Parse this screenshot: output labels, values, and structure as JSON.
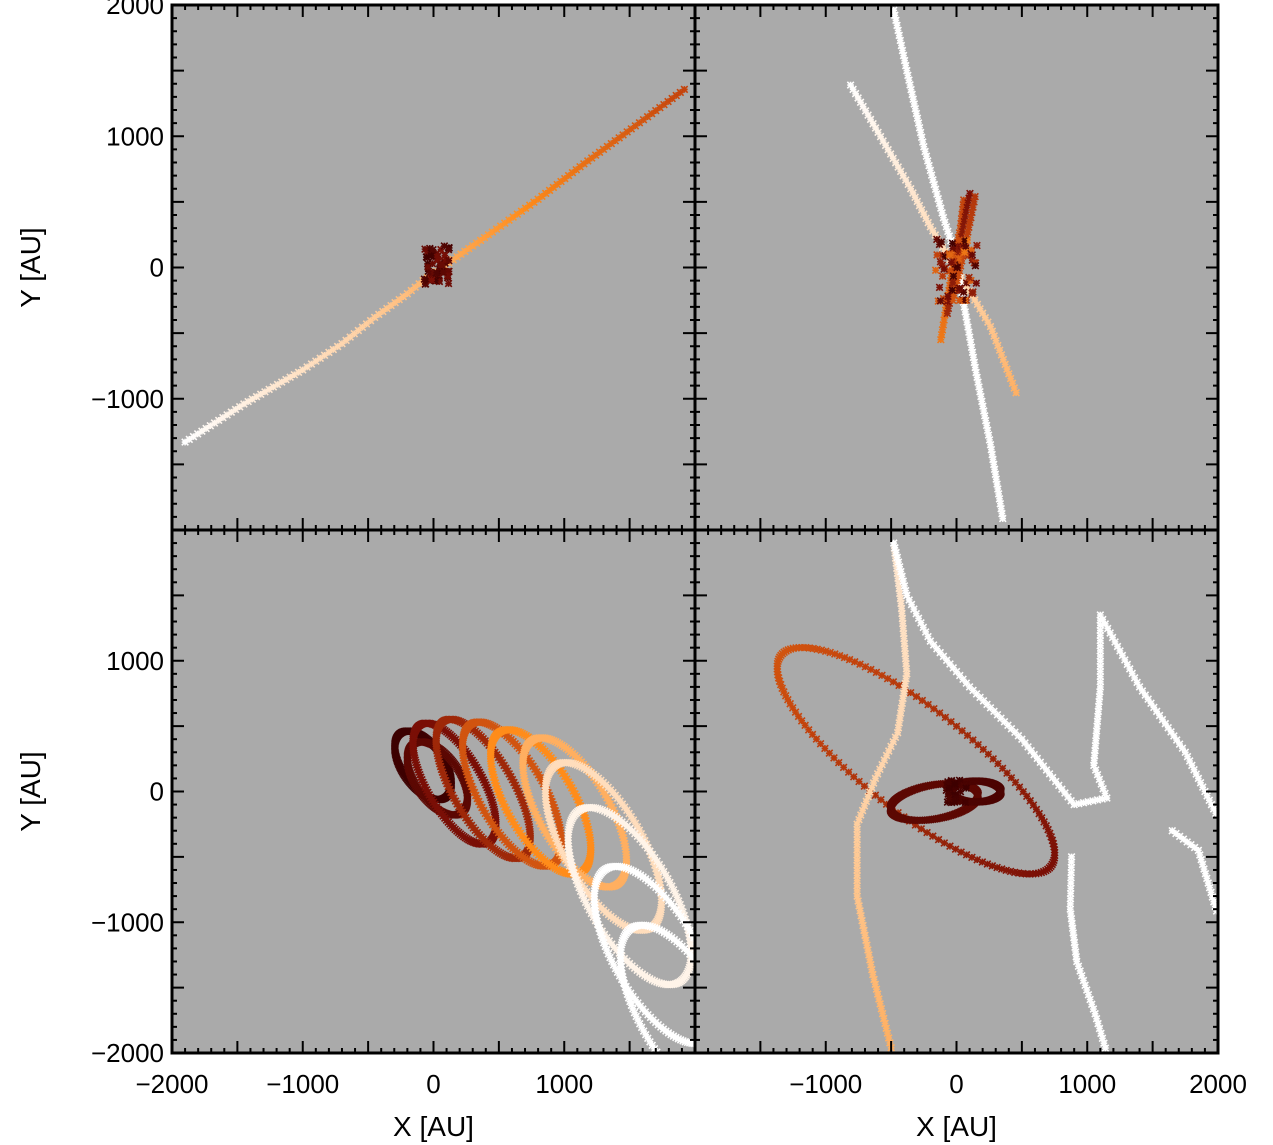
{
  "figure": {
    "background": "#ffffff",
    "panel_color": "#aaaaaa",
    "axis_color": "#000000",
    "colormap": [
      "#3d0000",
      "#7a0f06",
      "#c2410c",
      "#ff8c1a",
      "#ffd2a6",
      "#ffffff"
    ]
  },
  "chart_data": [
    {
      "type": "scatter",
      "panel": "top-left",
      "xlim": [
        -2000,
        2000
      ],
      "ylim": [
        -2000,
        2000
      ],
      "xlabel": "",
      "ylabel": "Y [AU]",
      "xticks": [],
      "yticks": [
        {
          "value": 2000,
          "label": "2000"
        },
        {
          "value": 1000,
          "label": "1000"
        },
        {
          "value": 0,
          "label": "0"
        },
        {
          "value": -1000,
          "label": "−1000"
        }
      ],
      "series": [
        {
          "kind": "line",
          "points": [
            [
              -1900,
              -1330
            ],
            [
              -1450,
              -1040
            ],
            [
              -1000,
              -780
            ],
            [
              -700,
              -580
            ],
            [
              -450,
              -380
            ],
            [
              -200,
              -200
            ],
            [
              -80,
              -100
            ],
            [
              150,
              60
            ],
            [
              450,
              270
            ],
            [
              800,
              520
            ],
            [
              1150,
              790
            ],
            [
              1450,
              1010
            ],
            [
              1950,
              1380
            ]
          ],
          "color_range": [
            1.0,
            0.4
          ]
        },
        {
          "kind": "blob",
          "center": [
            30,
            20
          ],
          "extent": [
            100,
            150
          ],
          "n": 60,
          "color_range": [
            0.0,
            0.2
          ]
        }
      ]
    },
    {
      "type": "scatter",
      "panel": "top-right",
      "xlim": [
        -2000,
        2000
      ],
      "ylim": [
        -2000,
        2000
      ],
      "xlabel": "",
      "ylabel": "",
      "xticks": [],
      "yticks": [],
      "series": [
        {
          "kind": "line",
          "points": [
            [
              -810,
              1390
            ],
            [
              -600,
              1030
            ],
            [
              -350,
              600
            ],
            [
              -200,
              310
            ],
            [
              -50,
              60
            ],
            [
              100,
              -180
            ],
            [
              260,
              -450
            ],
            [
              470,
              -990
            ]
          ],
          "color_range": [
            1.0,
            0.7
          ]
        },
        {
          "kind": "line",
          "points": [
            [
              -480,
              1960
            ],
            [
              -380,
              1500
            ],
            [
              -250,
              920
            ],
            [
              -100,
              380
            ],
            [
              -10,
              100
            ],
            [
              60,
              -300
            ],
            [
              150,
              -800
            ],
            [
              260,
              -1350
            ],
            [
              360,
              -1950
            ]
          ],
          "color_range": [
            1.0,
            1.0
          ]
        },
        {
          "kind": "line",
          "points": [
            [
              -120,
              -550
            ],
            [
              -70,
              -250
            ],
            [
              -20,
              50
            ],
            [
              30,
              300
            ],
            [
              60,
              550
            ]
          ],
          "color_range": [
            0.55,
            0.4
          ]
        },
        {
          "kind": "line",
          "points": [
            [
              -70,
              -350
            ],
            [
              0,
              0
            ],
            [
              60,
              350
            ],
            [
              110,
              600
            ]
          ],
          "color_range": [
            0.3,
            0.2
          ]
        },
        {
          "kind": "line",
          "points": [
            [
              -30,
              -250
            ],
            [
              40,
              50
            ],
            [
              110,
              380
            ],
            [
              150,
              580
            ]
          ],
          "color_range": [
            0.45,
            0.35
          ]
        },
        {
          "kind": "blob",
          "center": [
            0,
            -20
          ],
          "extent": [
            160,
            260
          ],
          "n": 70,
          "color_range": [
            0.0,
            0.55
          ]
        }
      ]
    },
    {
      "type": "scatter",
      "panel": "bottom-left",
      "xlim": [
        -2000,
        2000
      ],
      "ylim": [
        -2000,
        2000
      ],
      "xlabel": "X [AU]",
      "ylabel": "Y [AU]",
      "xticks": [
        {
          "value": -2000,
          "label": "−2000"
        },
        {
          "value": -1000,
          "label": "−1000"
        },
        {
          "value": 0,
          "label": "0"
        },
        {
          "value": 1000,
          "label": "1000"
        }
      ],
      "yticks": [
        {
          "value": 1000,
          "label": "1000"
        },
        {
          "value": 0,
          "label": "0"
        },
        {
          "value": -1000,
          "label": "−1000"
        },
        {
          "value": -2000,
          "label": "−2000"
        }
      ],
      "series": [
        {
          "kind": "ellipse",
          "center": [
            -80,
            200
          ],
          "rx": 160,
          "ry": 300,
          "rot": 35,
          "color": 0.0
        },
        {
          "kind": "ellipse",
          "center": [
            30,
            100
          ],
          "rx": 170,
          "ry": 320,
          "rot": 35,
          "color": 0.1
        },
        {
          "kind": "ellipse",
          "center": [
            160,
            60
          ],
          "rx": 210,
          "ry": 520,
          "rot": 30,
          "color": 0.2
        },
        {
          "kind": "ellipse",
          "center": [
            380,
            20
          ],
          "rx": 230,
          "ry": 600,
          "rot": 30,
          "color": 0.3
        },
        {
          "kind": "ellipse",
          "center": [
            600,
            -20
          ],
          "rx": 250,
          "ry": 620,
          "rot": 30,
          "color": 0.45
        },
        {
          "kind": "ellipse",
          "center": [
            820,
            -80
          ],
          "rx": 260,
          "ry": 620,
          "rot": 30,
          "color": 0.6
        },
        {
          "kind": "ellipse",
          "center": [
            1080,
            -160
          ],
          "rx": 270,
          "ry": 640,
          "rot": 30,
          "color": 0.7
        },
        {
          "kind": "ellipse",
          "center": [
            1300,
            -420
          ],
          "rx": 300,
          "ry": 720,
          "rot": 30,
          "color": 0.85
        },
        {
          "kind": "ellipse",
          "center": [
            1500,
            -800
          ],
          "rx": 320,
          "ry": 760,
          "rot": 30,
          "color": 0.95
        },
        {
          "kind": "ellipse",
          "center": [
            1700,
            -1250
          ],
          "rx": 320,
          "ry": 760,
          "rot": 30,
          "color": 1.0
        },
        {
          "kind": "ellipse",
          "center": [
            1900,
            -1700
          ],
          "rx": 320,
          "ry": 760,
          "rot": 30,
          "color": 1.0
        }
      ]
    },
    {
      "type": "scatter",
      "panel": "bottom-right",
      "xlim": [
        -2000,
        2000
      ],
      "ylim": [
        -2000,
        2000
      ],
      "xlabel": "X [AU]",
      "ylabel": "",
      "xticks": [
        {
          "value": -1000,
          "label": "−1000"
        },
        {
          "value": 0,
          "label": "0"
        },
        {
          "value": 1000,
          "label": "1000"
        },
        {
          "value": 2000,
          "label": "2000"
        }
      ],
      "yticks": [],
      "series": [
        {
          "kind": "ellipse",
          "center": [
            -310,
            235
          ],
          "rx": 1310,
          "ry": 400,
          "rot": -38,
          "color_range": [
            0.45,
            0.2
          ]
        },
        {
          "kind": "ellipse",
          "center": [
            -170,
            -80
          ],
          "rx": 340,
          "ry": 130,
          "rot": 10,
          "color": 0.1
        },
        {
          "kind": "ellipse",
          "center": [
            150,
            0
          ],
          "rx": 190,
          "ry": 80,
          "rot": 0,
          "color": 0.05
        },
        {
          "kind": "line",
          "points": [
            [
              -500,
              -1960
            ],
            [
              -640,
              -1400
            ],
            [
              -760,
              -800
            ],
            [
              -760,
              -250
            ],
            [
              -620,
              100
            ],
            [
              -450,
              450
            ],
            [
              -380,
              900
            ],
            [
              -420,
              1400
            ],
            [
              -480,
              1900
            ]
          ],
          "color_range": [
            0.7,
            0.9
          ]
        },
        {
          "kind": "line",
          "points": [
            [
              -480,
              1900
            ],
            [
              -380,
              1500
            ],
            [
              -200,
              1150
            ],
            [
              100,
              800
            ],
            [
              500,
              400
            ],
            [
              900,
              -100
            ],
            [
              1150,
              -50
            ],
            [
              1050,
              200
            ],
            [
              1100,
              800
            ],
            [
              1100,
              1350
            ]
          ],
          "color_range": [
            1.0,
            1.0
          ]
        },
        {
          "kind": "line",
          "points": [
            [
              1100,
              1350
            ],
            [
              1400,
              800
            ],
            [
              1750,
              300
            ],
            [
              2000,
              -200
            ]
          ],
          "color_range": [
            1.0,
            1.0
          ]
        },
        {
          "kind": "line",
          "points": [
            [
              880,
              -500
            ],
            [
              870,
              -900
            ],
            [
              920,
              -1300
            ],
            [
              1060,
              -1700
            ],
            [
              1150,
              -2000
            ]
          ],
          "color_range": [
            1.0,
            1.0
          ]
        },
        {
          "kind": "line",
          "points": [
            [
              1650,
              -300
            ],
            [
              1850,
              -450
            ],
            [
              2000,
              -950
            ]
          ],
          "color_range": [
            1.0,
            1.0
          ]
        },
        {
          "kind": "blob",
          "center": [
            0,
            0
          ],
          "extent": [
            80,
            90
          ],
          "n": 30,
          "color_range": [
            0.0,
            0.05
          ]
        }
      ]
    }
  ]
}
